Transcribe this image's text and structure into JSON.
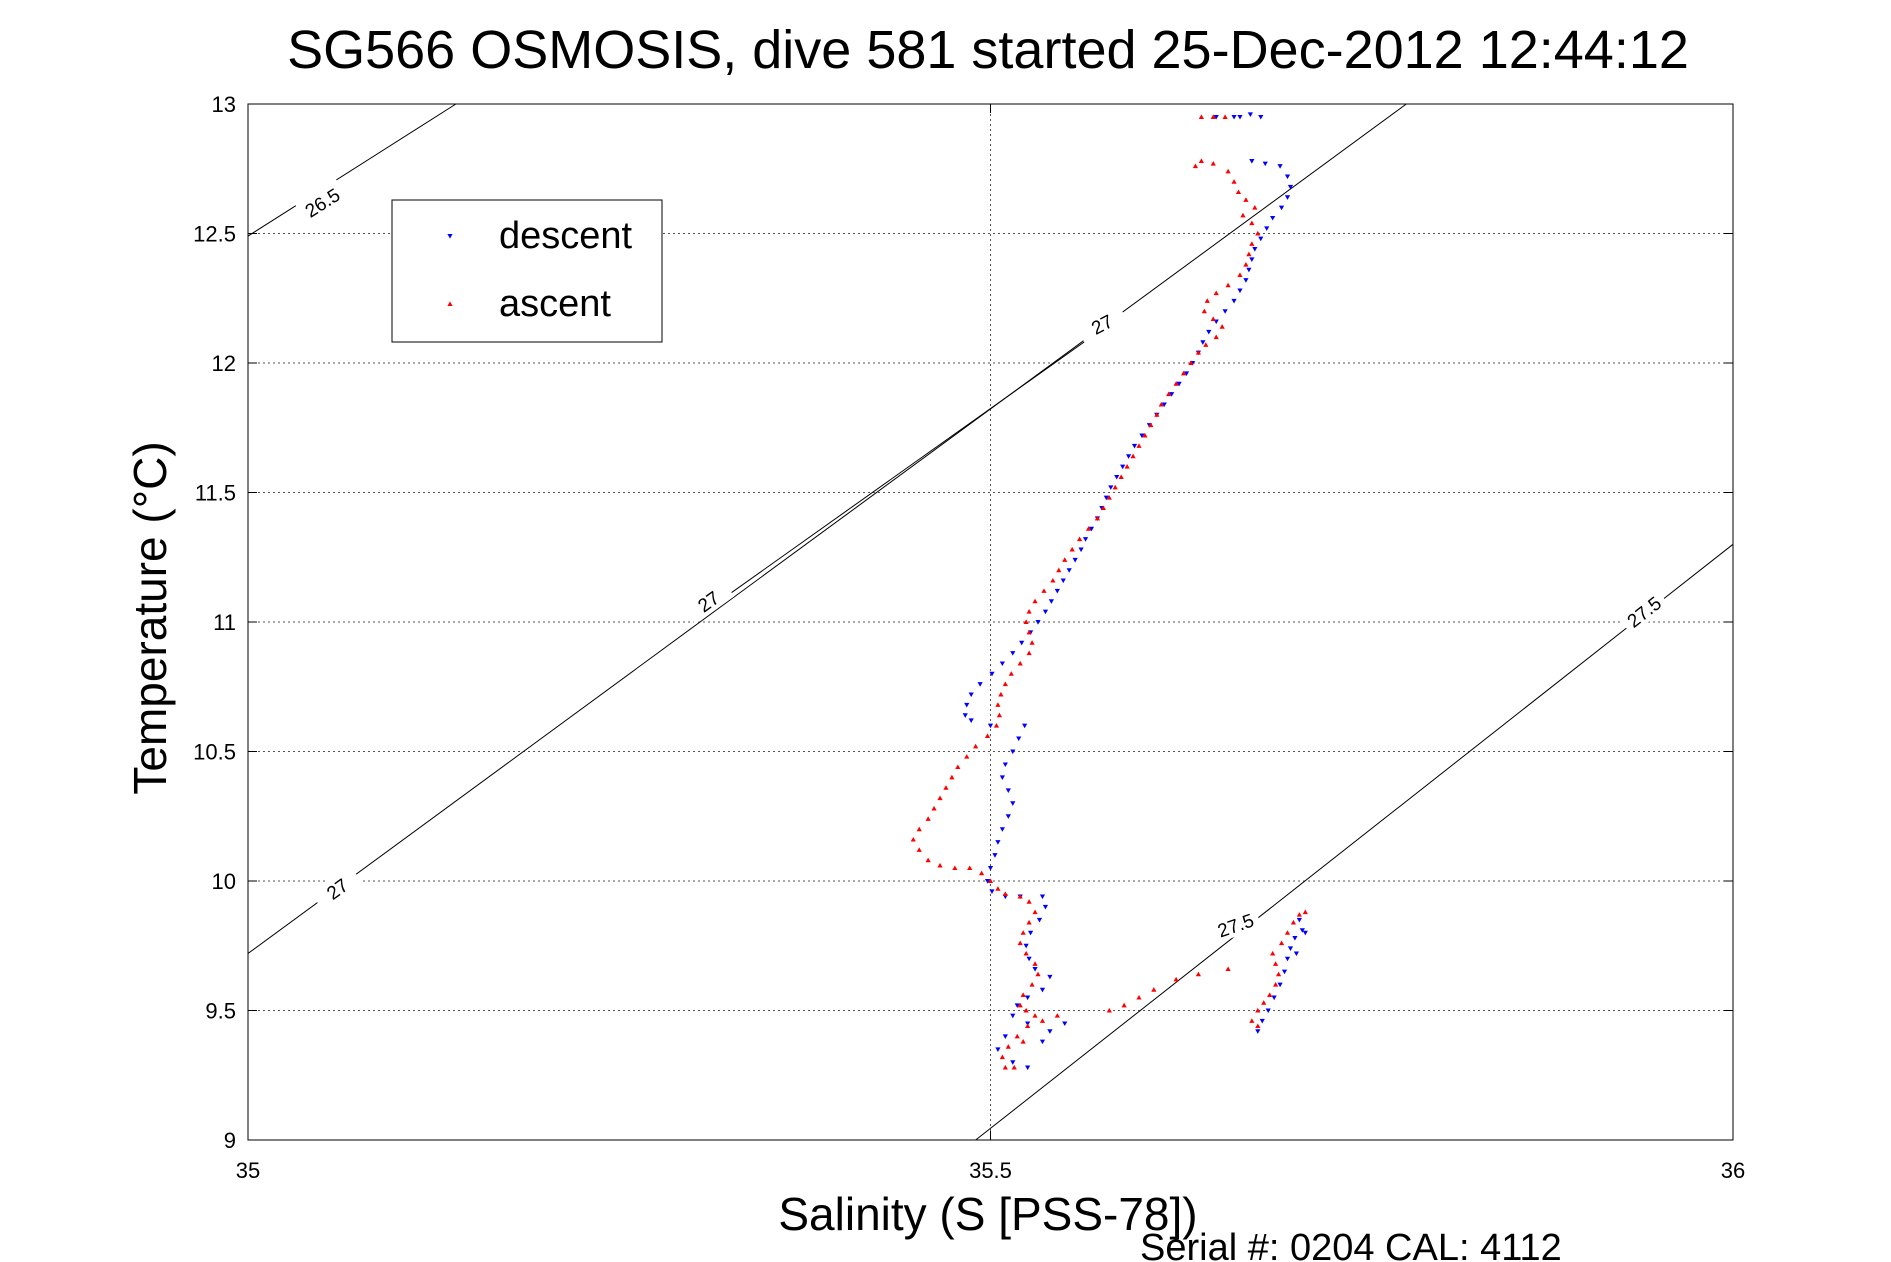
{
  "chart_data": {
    "type": "scatter",
    "title": "SG566 OSMOSIS, dive 581 started 25-Dec-2012 12:44:12",
    "xlabel": "Salinity (S [PSS-78])",
    "ylabel": "Temperature (°C)",
    "xlim": [
      35,
      36
    ],
    "ylim": [
      9,
      13
    ],
    "xticks": [
      "35",
      "35.5",
      "36"
    ],
    "yticks": [
      "9",
      "9.5",
      "10",
      "10.5",
      "11",
      "11.5",
      "12",
      "12.5",
      "13"
    ],
    "grid": true,
    "legend_position": "top-left",
    "footer": "Serial #: 0204  CAL: 4112",
    "series": [
      {
        "name": "descent",
        "color": "#0000ff",
        "marker": "triangle-down",
        "points": [
          [
            35.652,
            12.95
          ],
          [
            35.664,
            12.95
          ],
          [
            35.668,
            12.95
          ],
          [
            35.675,
            12.96
          ],
          [
            35.682,
            12.95
          ],
          [
            35.676,
            12.78
          ],
          [
            35.685,
            12.77
          ],
          [
            35.695,
            12.76
          ],
          [
            35.7,
            12.72
          ],
          [
            35.702,
            12.68
          ],
          [
            35.7,
            12.64
          ],
          [
            35.696,
            12.6
          ],
          [
            35.69,
            12.56
          ],
          [
            35.686,
            12.52
          ],
          [
            35.682,
            12.48
          ],
          [
            35.678,
            12.44
          ],
          [
            35.676,
            12.4
          ],
          [
            35.674,
            12.36
          ],
          [
            35.672,
            12.32
          ],
          [
            35.668,
            12.28
          ],
          [
            35.664,
            12.24
          ],
          [
            35.658,
            12.2
          ],
          [
            35.652,
            12.16
          ],
          [
            35.647,
            12.12
          ],
          [
            35.643,
            12.08
          ],
          [
            35.64,
            12.04
          ],
          [
            35.636,
            12.0
          ],
          [
            35.632,
            11.96
          ],
          [
            35.627,
            11.92
          ],
          [
            35.622,
            11.88
          ],
          [
            35.617,
            11.84
          ],
          [
            35.612,
            11.8
          ],
          [
            35.607,
            11.76
          ],
          [
            35.602,
            11.72
          ],
          [
            35.597,
            11.68
          ],
          [
            35.593,
            11.64
          ],
          [
            35.589,
            11.6
          ],
          [
            35.585,
            11.56
          ],
          [
            35.581,
            11.52
          ],
          [
            35.578,
            11.48
          ],
          [
            35.575,
            11.44
          ],
          [
            35.572,
            11.4
          ],
          [
            35.568,
            11.36
          ],
          [
            35.564,
            11.32
          ],
          [
            35.561,
            11.28
          ],
          [
            35.557,
            11.24
          ],
          [
            35.553,
            11.2
          ],
          [
            35.549,
            11.16
          ],
          [
            35.545,
            11.12
          ],
          [
            35.541,
            11.08
          ],
          [
            35.537,
            11.04
          ],
          [
            35.532,
            11.0
          ],
          [
            35.527,
            10.96
          ],
          [
            35.521,
            10.92
          ],
          [
            35.515,
            10.88
          ],
          [
            35.508,
            10.84
          ],
          [
            35.501,
            10.8
          ],
          [
            35.493,
            10.76
          ],
          [
            35.487,
            10.72
          ],
          [
            35.484,
            10.68
          ],
          [
            35.483,
            10.64
          ],
          [
            35.487,
            10.62
          ],
          [
            35.5,
            10.6
          ],
          [
            35.523,
            10.6
          ],
          [
            35.519,
            10.55
          ],
          [
            35.515,
            10.5
          ],
          [
            35.51,
            10.45
          ],
          [
            35.508,
            10.4
          ],
          [
            35.512,
            10.35
          ],
          [
            35.515,
            10.3
          ],
          [
            35.512,
            10.25
          ],
          [
            35.508,
            10.2
          ],
          [
            35.505,
            10.15
          ],
          [
            35.503,
            10.1
          ],
          [
            35.5,
            10.05
          ],
          [
            35.498,
            10.0
          ],
          [
            35.501,
            9.96
          ],
          [
            35.51,
            9.94
          ],
          [
            35.52,
            9.94
          ],
          [
            35.535,
            9.94
          ],
          [
            35.537,
            9.9
          ],
          [
            35.533,
            9.85
          ],
          [
            35.527,
            9.8
          ],
          [
            35.524,
            9.75
          ],
          [
            35.526,
            9.7
          ],
          [
            35.53,
            9.66
          ],
          [
            35.54,
            9.63
          ],
          [
            35.535,
            9.58
          ],
          [
            35.525,
            9.55
          ],
          [
            35.518,
            9.52
          ],
          [
            35.515,
            9.48
          ],
          [
            35.525,
            9.45
          ],
          [
            35.54,
            9.42
          ],
          [
            35.51,
            9.4
          ],
          [
            35.505,
            9.35
          ],
          [
            35.515,
            9.3
          ],
          [
            35.525,
            9.28
          ],
          [
            35.535,
            9.38
          ],
          [
            35.55,
            9.45
          ],
          [
            35.68,
            9.42
          ],
          [
            35.683,
            9.46
          ],
          [
            35.687,
            9.5
          ],
          [
            35.691,
            9.55
          ],
          [
            35.695,
            9.6
          ],
          [
            35.698,
            9.65
          ],
          [
            35.7,
            9.7
          ],
          [
            35.702,
            9.74
          ],
          [
            35.705,
            9.78
          ],
          [
            35.71,
            9.81
          ],
          [
            35.708,
            9.85
          ],
          [
            35.712,
            9.8
          ],
          [
            35.706,
            9.72
          ]
        ]
      },
      {
        "name": "ascent",
        "color": "#ff0000",
        "marker": "triangle-up",
        "points": [
          [
            35.642,
            12.95
          ],
          [
            35.65,
            12.95
          ],
          [
            35.658,
            12.95
          ],
          [
            35.638,
            12.76
          ],
          [
            35.642,
            12.78
          ],
          [
            35.65,
            12.77
          ],
          [
            35.66,
            12.74
          ],
          [
            35.664,
            12.7
          ],
          [
            35.667,
            12.66
          ],
          [
            35.672,
            12.63
          ],
          [
            35.678,
            12.6
          ],
          [
            35.67,
            12.57
          ],
          [
            35.676,
            12.54
          ],
          [
            35.68,
            12.5
          ],
          [
            35.676,
            12.46
          ],
          [
            35.674,
            12.42
          ],
          [
            35.672,
            12.38
          ],
          [
            35.668,
            12.34
          ],
          [
            35.66,
            12.3
          ],
          [
            35.652,
            12.27
          ],
          [
            35.646,
            12.24
          ],
          [
            35.644,
            12.2
          ],
          [
            35.65,
            12.17
          ],
          [
            35.656,
            12.14
          ],
          [
            35.652,
            12.1
          ],
          [
            35.645,
            12.07
          ],
          [
            35.64,
            12.04
          ],
          [
            35.635,
            12.0
          ],
          [
            35.63,
            11.96
          ],
          [
            35.625,
            11.92
          ],
          [
            35.62,
            11.88
          ],
          [
            35.615,
            11.84
          ],
          [
            35.612,
            11.8
          ],
          [
            35.608,
            11.76
          ],
          [
            35.604,
            11.72
          ],
          [
            35.6,
            11.68
          ],
          [
            35.596,
            11.64
          ],
          [
            35.592,
            11.6
          ],
          [
            35.588,
            11.56
          ],
          [
            35.584,
            11.52
          ],
          [
            35.58,
            11.48
          ],
          [
            35.576,
            11.44
          ],
          [
            35.572,
            11.4
          ],
          [
            35.566,
            11.36
          ],
          [
            35.56,
            11.32
          ],
          [
            35.555,
            11.28
          ],
          [
            35.55,
            11.24
          ],
          [
            35.546,
            11.2
          ],
          [
            35.542,
            11.16
          ],
          [
            35.536,
            11.12
          ],
          [
            35.53,
            11.08
          ],
          [
            35.526,
            11.04
          ],
          [
            35.524,
            11.0
          ],
          [
            35.526,
            10.96
          ],
          [
            35.528,
            10.92
          ],
          [
            35.526,
            10.88
          ],
          [
            35.52,
            10.84
          ],
          [
            35.514,
            10.8
          ],
          [
            35.51,
            10.76
          ],
          [
            35.507,
            10.72
          ],
          [
            35.505,
            10.68
          ],
          [
            35.506,
            10.64
          ],
          [
            35.504,
            10.6
          ],
          [
            35.498,
            10.56
          ],
          [
            35.49,
            10.52
          ],
          [
            35.484,
            10.48
          ],
          [
            35.478,
            10.44
          ],
          [
            35.474,
            10.4
          ],
          [
            35.47,
            10.36
          ],
          [
            35.466,
            10.32
          ],
          [
            35.462,
            10.28
          ],
          [
            35.458,
            10.24
          ],
          [
            35.452,
            10.2
          ],
          [
            35.448,
            10.16
          ],
          [
            35.452,
            10.12
          ],
          [
            35.458,
            10.08
          ],
          [
            35.466,
            10.06
          ],
          [
            35.476,
            10.05
          ],
          [
            35.486,
            10.05
          ],
          [
            35.494,
            10.03
          ],
          [
            35.5,
            10.0
          ],
          [
            35.505,
            9.97
          ],
          [
            35.51,
            9.95
          ],
          [
            35.52,
            9.94
          ],
          [
            35.526,
            9.92
          ],
          [
            35.53,
            9.88
          ],
          [
            35.526,
            9.84
          ],
          [
            35.522,
            9.8
          ],
          [
            35.52,
            9.76
          ],
          [
            35.524,
            9.72
          ],
          [
            35.53,
            9.68
          ],
          [
            35.532,
            9.64
          ],
          [
            35.528,
            9.6
          ],
          [
            35.522,
            9.56
          ],
          [
            35.52,
            9.52
          ],
          [
            35.524,
            9.5
          ],
          [
            35.53,
            9.48
          ],
          [
            35.525,
            9.44
          ],
          [
            35.518,
            9.4
          ],
          [
            35.512,
            9.36
          ],
          [
            35.508,
            9.32
          ],
          [
            35.51,
            9.28
          ],
          [
            35.516,
            9.28
          ],
          [
            35.522,
            9.38
          ],
          [
            35.535,
            9.46
          ],
          [
            35.545,
            9.48
          ],
          [
            35.58,
            9.5
          ],
          [
            35.59,
            9.52
          ],
          [
            35.6,
            9.55
          ],
          [
            35.61,
            9.58
          ],
          [
            35.625,
            9.62
          ],
          [
            35.64,
            9.64
          ],
          [
            35.66,
            9.66
          ],
          [
            35.68,
            9.44
          ],
          [
            35.676,
            9.46
          ],
          [
            35.68,
            9.5
          ],
          [
            35.684,
            9.53
          ],
          [
            35.688,
            9.56
          ],
          [
            35.692,
            9.6
          ],
          [
            35.694,
            9.64
          ],
          [
            35.692,
            9.68
          ],
          [
            35.69,
            9.72
          ],
          [
            35.696,
            9.76
          ],
          [
            35.7,
            9.8
          ],
          [
            35.704,
            9.84
          ],
          [
            35.708,
            9.87
          ],
          [
            35.712,
            9.88
          ]
        ]
      }
    ],
    "density_contours": [
      {
        "label": "26.5",
        "s0": 35.0,
        "t0": 12.49,
        "s1": 35.14,
        "t1": 13.0,
        "label_s": 35.05,
        "label_t": 12.62
      },
      {
        "label": "27",
        "s0": 35.0,
        "t0": 9.72,
        "s1": 35.78,
        "t1": 13.0,
        "label_s": 35.06,
        "label_t": 9.97
      },
      {
        "label": "27",
        "s0": 35.31,
        "t0": 11.05,
        "s1": 35.58,
        "t1": 12.15,
        "label_s": 35.31,
        "label_t": 11.08
      },
      {
        "label": "27",
        "s0": 35.57,
        "t0": 12.1,
        "s1": 35.58,
        "t1": 12.13,
        "label_s": 35.575,
        "label_t": 12.15
      },
      {
        "label": "27.5",
        "s0": 35.49,
        "t0": 9.0,
        "s1": 36.0,
        "t1": 11.3,
        "label_s": 35.94,
        "label_t": 11.04
      },
      {
        "label": "27.5",
        "s0": 35.66,
        "t0": 9.8,
        "s1": 35.67,
        "t1": 9.82,
        "label_s": 35.665,
        "label_t": 9.83
      }
    ]
  }
}
